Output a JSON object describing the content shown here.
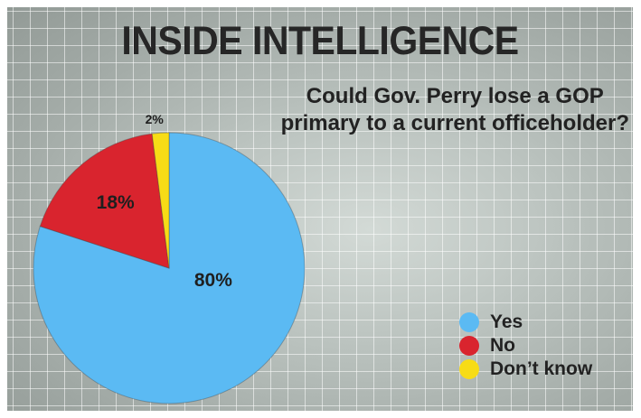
{
  "headline": "INSIDE INTELLIGENCE",
  "question_line1": "Could Gov. Perry lose a GOP",
  "question_line2": "primary to a current officeholder?",
  "chart_data": {
    "type": "pie",
    "title": "Could Gov. Perry lose a GOP primary to a current officeholder?",
    "categories": [
      "Yes",
      "No",
      "Don’t know"
    ],
    "values": [
      80,
      18,
      2
    ],
    "labels": [
      "80%",
      "18%",
      "2%"
    ],
    "colors": [
      "#5bbaf3",
      "#d9242e",
      "#f7dc16"
    ],
    "legend_position": "bottom-right",
    "grid": false
  }
}
